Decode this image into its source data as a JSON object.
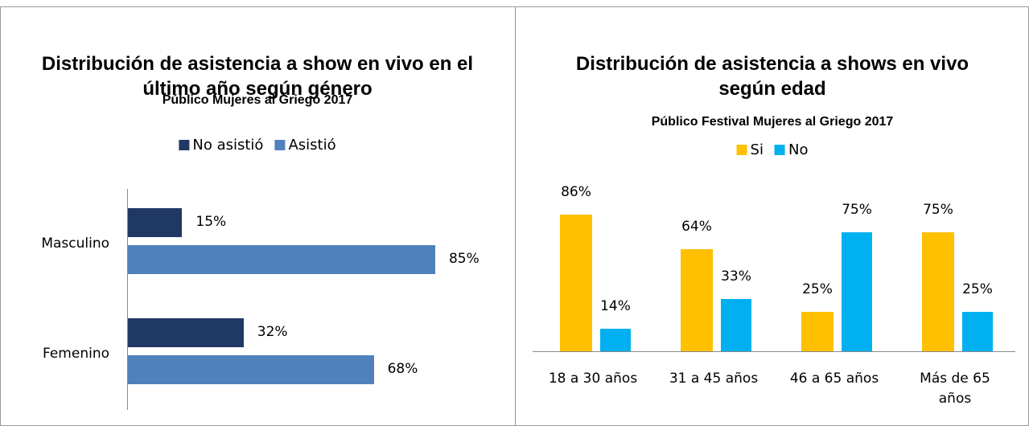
{
  "chart_data": [
    {
      "type": "hbar",
      "title": "Distribución de asistencia a show en vivo en el último año según género",
      "subtitle": "Público Mujeres al Griego 2017",
      "categories": [
        "Masculino",
        "Femenino"
      ],
      "series": [
        {
          "name": "No asistió",
          "color": "#1f3864",
          "values": [
            15,
            32
          ],
          "value_labels": [
            "15%",
            "32%"
          ]
        },
        {
          "name": "Asistió",
          "color": "#4f81bd",
          "values": [
            85,
            68
          ],
          "value_labels": [
            "85%",
            "68%"
          ]
        }
      ]
    },
    {
      "type": "bar",
      "title": "Distribución de asistencia a shows en vivo según edad",
      "subtitle": "Público Festival Mujeres al Griego 2017",
      "categories": [
        "18 a 30 años",
        "31 a 45 años",
        "46 a 65 años",
        "Más de 65 años"
      ],
      "series": [
        {
          "name": "Si",
          "color": "#ffc000",
          "values": [
            86,
            64,
            25,
            75
          ],
          "value_labels": [
            "86%",
            "64%",
            "25%",
            "75%"
          ]
        },
        {
          "name": "No",
          "color": "#00b0f0",
          "values": [
            14,
            33,
            75,
            25
          ],
          "value_labels": [
            "14%",
            "33%",
            "75%",
            "25%"
          ]
        }
      ]
    }
  ]
}
